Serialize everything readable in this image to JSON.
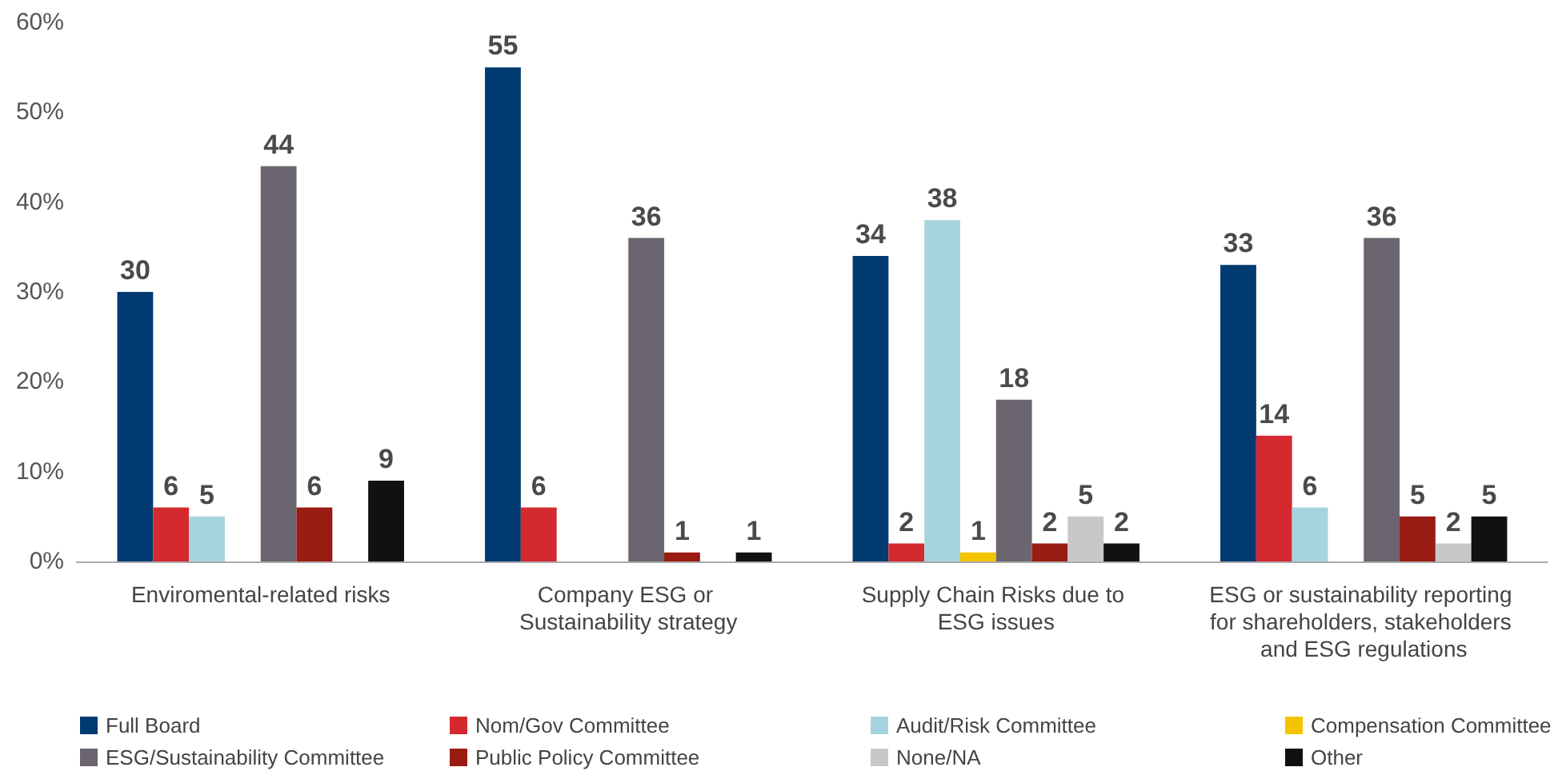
{
  "chart_data": {
    "type": "bar",
    "categories": [
      "Enviromental-related risks",
      "Company ESG or Sustainability strategy",
      "Supply Chain Risks due to ESG issues",
      "ESG or sustainability reporting for shareholders, stakeholders and ESG regulations"
    ],
    "series": [
      {
        "name": "Full Board",
        "color": "#003a70",
        "values": [
          30,
          55,
          34,
          33
        ]
      },
      {
        "name": "Nom/Gov Committee",
        "color": "#d42a2f",
        "values": [
          6,
          6,
          2,
          14
        ]
      },
      {
        "name": "Audit/Risk Committee",
        "color": "#a6d4de",
        "values": [
          5,
          null,
          38,
          6
        ]
      },
      {
        "name": "Compensation Committee",
        "color": "#f5c400",
        "values": [
          null,
          null,
          1,
          null
        ]
      },
      {
        "name": "ESG/Sustainability Committee",
        "color": "#6b6570",
        "values": [
          44,
          36,
          18,
          36
        ]
      },
      {
        "name": "Public Policy Committee",
        "color": "#9a1b12",
        "values": [
          6,
          1,
          2,
          5
        ]
      },
      {
        "name": "None/NA",
        "color": "#c8c8c8",
        "values": [
          null,
          null,
          5,
          2
        ]
      },
      {
        "name": "Other",
        "color": "#111111",
        "values": [
          9,
          1,
          2,
          5
        ]
      }
    ],
    "ylim": [
      0,
      60
    ],
    "yticks": [
      {
        "value": 0,
        "label": "0%"
      },
      {
        "value": 10,
        "label": "10%"
      },
      {
        "value": 20,
        "label": "20%"
      },
      {
        "value": 30,
        "label": "30%"
      },
      {
        "value": 40,
        "label": "40%"
      },
      {
        "value": 50,
        "label": "50%"
      },
      {
        "value": 60,
        "label": "60%"
      }
    ],
    "grid": false,
    "legend": "bottom",
    "data_labels": true
  }
}
